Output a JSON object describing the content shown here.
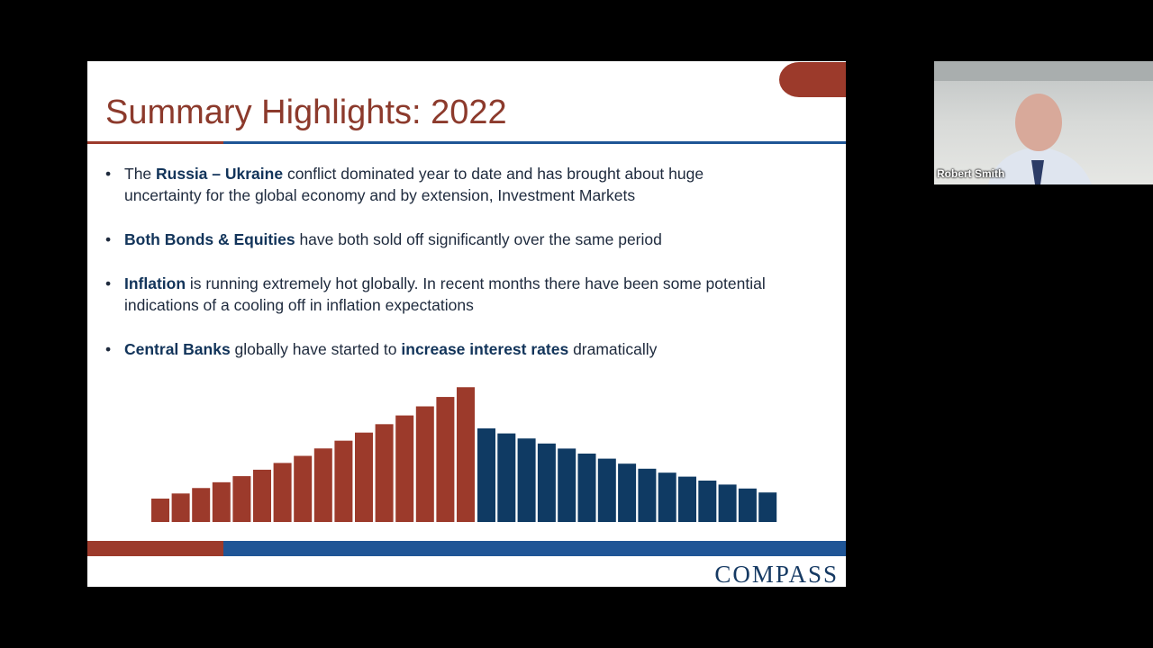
{
  "slide": {
    "title": "Summary Highlights: 2022",
    "bullets": [
      [
        {
          "text": "The ",
          "bold": false
        },
        {
          "text": "Russia – Ukraine",
          "bold": true
        },
        {
          "text": " conflict dominated year to date and has brought about huge uncertainty for the global economy and by extension, Investment Markets",
          "bold": false
        }
      ],
      [
        {
          "text": "Both Bonds & Equities",
          "bold": true
        },
        {
          "text": " have both sold off significantly over the same period",
          "bold": false
        }
      ],
      [
        {
          "text": "Inflation",
          "bold": true
        },
        {
          "text": " is running extremely hot globally. In recent months there have been some potential indications of a cooling off in inflation expectations",
          "bold": false
        }
      ],
      [
        {
          "text": "Central Banks",
          "bold": true
        },
        {
          "text": " globally have started to ",
          "bold": false
        },
        {
          "text": "increase interest rates",
          "bold": true
        },
        {
          "text": " dramatically",
          "bold": false
        }
      ]
    ],
    "logo": "COMPASS"
  },
  "participant": {
    "name": "Robert Smith"
  }
}
